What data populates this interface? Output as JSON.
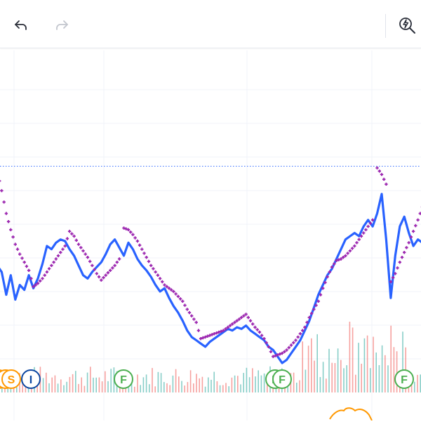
{
  "toolbar": {
    "undo_icon": "undo-arrow-icon",
    "redo_icon": "redo-arrow-icon",
    "quick_search_icon": "lightning-magnifier-icon"
  },
  "colors": {
    "price_line": "#2962ff",
    "sar_dots": "#9c27b0",
    "volume_up": "#26a69a",
    "volume_down": "#ef5350",
    "reference_line": "#2962ff",
    "earnings_marker": "#4caf50",
    "dividend_marker": "#ff9800",
    "split_marker": "#0d47a1"
  },
  "chart_data": {
    "type": "line",
    "y_reference": 17.1,
    "price": [
      11,
      10.6,
      9.2,
      10.4,
      8.9,
      9.8,
      9.5,
      10.4,
      9.6,
      10.2,
      11.1,
      12.2,
      12.0,
      12.4,
      12.6,
      12.5,
      12.0,
      11.6,
      11.0,
      10.4,
      10.2,
      10.6,
      10.9,
      11.2,
      11.7,
      12.3,
      12.6,
      12.1,
      11.6,
      12.4,
      12.0,
      11.4,
      11.0,
      10.7,
      10.3,
      9.8,
      9.4,
      9.6,
      9.0,
      8.5,
      8.1,
      7.6,
      7.0,
      6.6,
      6.4,
      6.2,
      6.0,
      6.3,
      6.5,
      6.7,
      6.9,
      7.1,
      7.0,
      7.2,
      7.1,
      7.3,
      7.0,
      6.8,
      6.6,
      6.4,
      6.0,
      5.8,
      5.4,
      5.0,
      5.2,
      5.6,
      6.0,
      6.4,
      7.0,
      7.6,
      8.4,
      9.2,
      9.8,
      10.4,
      10.8,
      11.4,
      12.0,
      12.6,
      12.8,
      13.0,
      12.8,
      13.4,
      13.8,
      13.4,
      14.2,
      15.4,
      12.6,
      9.0,
      11.6,
      13.4,
      14.0,
      13.0,
      12.2,
      12.6,
      12.4
    ],
    "sar": [
      16.8,
      15.6,
      14.2,
      13.2,
      12.3,
      11.7,
      11.2,
      10.7,
      9.7,
      9.9,
      10.2,
      10.6,
      11.0,
      11.4,
      11.8,
      12.2,
      13.1,
      12.8,
      12.3,
      11.9,
      11.5,
      11.0,
      10.5,
      10.1,
      10.4,
      10.7,
      11.0,
      11.4,
      13.3,
      13.2,
      12.9,
      12.5,
      12.0,
      11.5,
      11.0,
      10.6,
      10.2,
      9.8,
      9.6,
      9.4,
      9.1,
      8.8,
      8.3,
      7.9,
      7.5,
      6.5,
      6.6,
      6.7,
      6.8,
      6.9,
      7.0,
      7.2,
      7.4,
      7.6,
      7.8,
      8.0,
      7.6,
      7.2,
      6.9,
      6.5,
      6.0,
      5.4,
      5.5,
      5.6,
      5.8,
      6.1,
      6.4,
      6.8,
      7.2,
      7.8,
      8.3,
      8.8,
      9.6,
      10.3,
      10.9,
      11.3,
      11.4,
      11.6,
      11.9,
      12.2,
      12.6,
      13.0,
      13.4,
      13.8,
      17.0,
      16.6,
      16.0,
      10.0,
      10.5,
      11.2,
      11.8,
      12.4,
      13.1,
      13.8,
      14.6
    ],
    "events": [
      {
        "type": "dividend",
        "label": ""
      },
      {
        "type": "dividend",
        "label": ""
      },
      {
        "type": "dividend",
        "label": "S"
      },
      {
        "type": "split",
        "label": "I"
      },
      {
        "type": "earnings",
        "label": "F"
      },
      {
        "type": "earnings",
        "label": "F"
      },
      {
        "type": "earnings",
        "label": "F"
      },
      {
        "type": "earnings",
        "label": "F"
      }
    ]
  }
}
